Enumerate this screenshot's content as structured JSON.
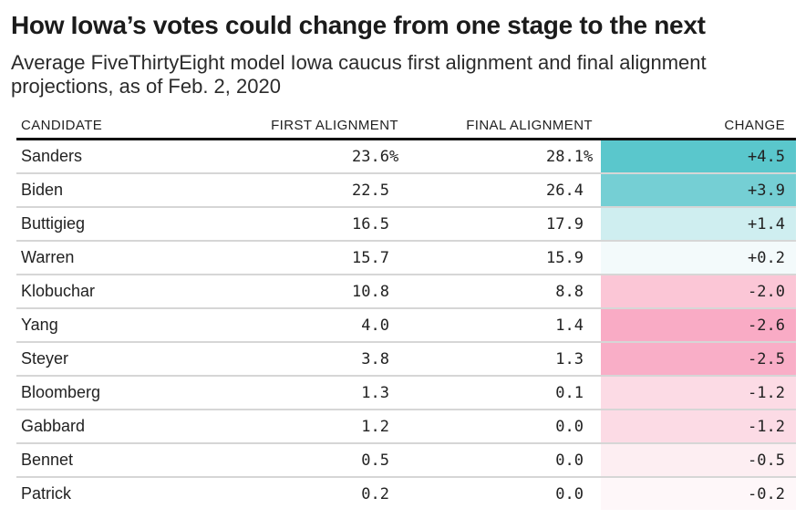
{
  "header": {
    "title": "How Iowa’s votes could change from one stage to the next",
    "subtitle": "Average FiveThirtyEight model Iowa caucus first alignment and final alignment projections, as of Feb. 2, 2020"
  },
  "table": {
    "columns": [
      "CANDIDATE",
      "FIRST ALIGNMENT",
      "FINAL ALIGNMENT",
      "CHANGE"
    ],
    "rows": [
      {
        "candidate": "Sanders",
        "first": "23.6",
        "first_suffix": "%",
        "final": "28.1",
        "final_suffix": "%",
        "change": "+4.5",
        "change_color": "#5ac7cc"
      },
      {
        "candidate": "Biden",
        "first": "22.5",
        "first_suffix": "",
        "final": "26.4",
        "final_suffix": "",
        "change": "+3.9",
        "change_color": "#75cfd4"
      },
      {
        "candidate": "Buttigieg",
        "first": "16.5",
        "first_suffix": "",
        "final": "17.9",
        "final_suffix": "",
        "change": "+1.4",
        "change_color": "#cfeef0"
      },
      {
        "candidate": "Warren",
        "first": "15.7",
        "first_suffix": "",
        "final": "15.9",
        "final_suffix": "",
        "change": "+0.2",
        "change_color": "#f3fafb"
      },
      {
        "candidate": "Klobuchar",
        "first": "10.8",
        "first_suffix": "",
        "final": "8.8",
        "final_suffix": "",
        "change": "-2.0",
        "change_color": "#fbc6d6"
      },
      {
        "candidate": "Yang",
        "first": "4.0",
        "first_suffix": "",
        "final": "1.4",
        "final_suffix": "",
        "change": "-2.6",
        "change_color": "#f9abc5"
      },
      {
        "candidate": "Steyer",
        "first": "3.8",
        "first_suffix": "",
        "final": "1.3",
        "final_suffix": "",
        "change": "-2.5",
        "change_color": "#f9aec7"
      },
      {
        "candidate": "Bloomberg",
        "first": "1.3",
        "first_suffix": "",
        "final": "0.1",
        "final_suffix": "",
        "change": "-1.2",
        "change_color": "#fcdbe5"
      },
      {
        "candidate": "Gabbard",
        "first": "1.2",
        "first_suffix": "",
        "final": "0.0",
        "final_suffix": "",
        "change": "-1.2",
        "change_color": "#fcdbe5"
      },
      {
        "candidate": "Bennet",
        "first": "0.5",
        "first_suffix": "",
        "final": "0.0",
        "final_suffix": "",
        "change": "-0.5",
        "change_color": "#fdeef2"
      },
      {
        "candidate": "Patrick",
        "first": "0.2",
        "first_suffix": "",
        "final": "0.0",
        "final_suffix": "",
        "change": "-0.2",
        "change_color": "#fef7f9"
      }
    ]
  },
  "colors": {
    "positive_change": "#5ac7cc",
    "negative_change": "#f9abc5",
    "header_rule": "#111111",
    "row_rule": "#d6d6d6",
    "text": "#222222"
  },
  "chart_data": {
    "type": "table",
    "title": "How Iowa’s votes could change from one stage to the next",
    "subtitle": "Average FiveThirtyEight model Iowa caucus first alignment and final alignment projections, as of Feb. 2, 2020",
    "columns": [
      "CANDIDATE",
      "FIRST ALIGNMENT",
      "FINAL ALIGNMENT",
      "CHANGE"
    ],
    "categories": [
      "Sanders",
      "Biden",
      "Buttigieg",
      "Warren",
      "Klobuchar",
      "Yang",
      "Steyer",
      "Bloomberg",
      "Gabbard",
      "Bennet",
      "Patrick"
    ],
    "series": [
      {
        "name": "First alignment (%)",
        "values": [
          23.6,
          22.5,
          16.5,
          15.7,
          10.8,
          4.0,
          3.8,
          1.3,
          1.2,
          0.5,
          0.2
        ]
      },
      {
        "name": "Final alignment (%)",
        "values": [
          28.1,
          26.4,
          17.9,
          15.9,
          8.8,
          1.4,
          1.3,
          0.1,
          0.0,
          0.0,
          0.0
        ]
      },
      {
        "name": "Change (pct pts)",
        "values": [
          4.5,
          3.9,
          1.4,
          0.2,
          -2.0,
          -2.6,
          -2.5,
          -1.2,
          -1.2,
          -0.5,
          -0.2
        ]
      }
    ],
    "layout_hints": "Change column cells shaded teal for positive values, pink for negative; shade intensity scales with magnitude"
  }
}
